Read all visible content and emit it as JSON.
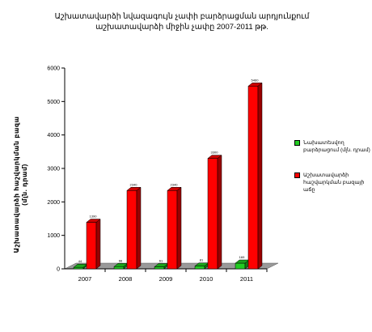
{
  "chart_data": {
    "type": "bar",
    "title": "Աշխատավարձի նվազագույն չափի բարձրացման արդյունքում աշխատավարձի միջին չափը 2007-2011 թթ.",
    "ylabel": "Աշխատավարձի հաշվարկման բազա (մլն. դրամ)",
    "xlabel": "",
    "categories": [
      "2007",
      "2008",
      "2009",
      "2010",
      "2011"
    ],
    "yticks": [
      0,
      1000,
      2000,
      3000,
      4000,
      5000,
      6000
    ],
    "ylim": [
      0,
      6000
    ],
    "grid": false,
    "legend_position": "right",
    "series": [
      {
        "name": "Նախատեսվող բարձրացում (մլն. դրամ)",
        "color": "#22cc22",
        "values": [
          44,
          66,
          61,
          81,
          169
        ],
        "labels": [
          "44",
          "66",
          "61",
          "81",
          "169"
        ]
      },
      {
        "name": "Աշխատավարձի հաշվարկման բազայի աճը",
        "color": "#ff0000",
        "values": [
          1390,
          2340,
          2340,
          3300,
          5460
        ],
        "labels": [
          "1390",
          "2340",
          "2340",
          "3300",
          "5460"
        ]
      }
    ]
  }
}
